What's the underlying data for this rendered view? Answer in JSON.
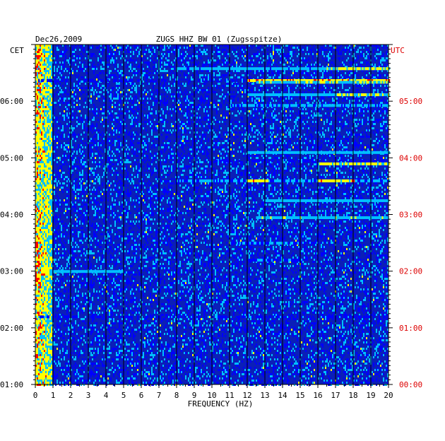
{
  "chart_data": {
    "type": "heatmap",
    "title_left": "Dec26,2009",
    "title": "ZUGS HHZ BW 01 (Zugsspitze)",
    "xlabel": "FREQUENCY (HZ)",
    "left_axis_label": "CET",
    "right_axis_label": "UTC",
    "xlim": [
      0,
      20
    ],
    "x_ticks": [
      "0",
      "1",
      "2",
      "3",
      "4",
      "5",
      "6",
      "7",
      "8",
      "9",
      "10",
      "11",
      "12",
      "13",
      "14",
      "15",
      "16",
      "17",
      "18",
      "19",
      "20"
    ],
    "y_ticks_cet": [
      "06:00",
      "05:00",
      "04:00",
      "03:00",
      "02:00",
      "01:00"
    ],
    "y_ticks_utc": [
      "05:00",
      "04:00",
      "03:00",
      "02:00",
      "01:00",
      "00:00"
    ],
    "y_tick_hours_from_top": [
      1,
      2,
      3,
      4,
      5,
      6
    ],
    "time_span_hours": 6,
    "grid": true,
    "colormap": [
      "#00008b",
      "#0000ff",
      "#00bfff",
      "#ffff00",
      "#ff0000"
    ],
    "background_color": "#0b1fb8",
    "accent_color": "#dd0000",
    "bands": [
      {
        "t": 0.42,
        "f0": 8.0,
        "f1": 20,
        "level": 0.55
      },
      {
        "t": 0.42,
        "f0": 16.5,
        "f1": 20,
        "level": 0.85
      },
      {
        "t": 0.63,
        "f0": 0,
        "f1": 20,
        "level": 0.35
      },
      {
        "t": 0.63,
        "f0": 12.0,
        "f1": 20,
        "level": 0.95
      },
      {
        "t": 0.66,
        "f0": 12.5,
        "f1": 20,
        "level": 0.7
      },
      {
        "t": 0.88,
        "f0": 12.0,
        "f1": 20,
        "level": 0.6
      },
      {
        "t": 0.88,
        "f0": 17.0,
        "f1": 20,
        "level": 0.8
      },
      {
        "t": 1.07,
        "f0": 11.0,
        "f1": 20,
        "level": 0.5
      },
      {
        "t": 1.4,
        "f0": 0,
        "f1": 20,
        "level": 0.25
      },
      {
        "t": 1.9,
        "f0": 12.0,
        "f1": 20,
        "level": 0.6
      },
      {
        "t": 2.05,
        "f0": 8.0,
        "f1": 20,
        "level": 0.35
      },
      {
        "t": 2.1,
        "f0": 16.0,
        "f1": 20,
        "level": 0.85
      },
      {
        "t": 2.4,
        "f0": 8.0,
        "f1": 20,
        "level": 0.5
      },
      {
        "t": 2.4,
        "f0": 12.0,
        "f1": 13.2,
        "level": 0.95
      },
      {
        "t": 2.4,
        "f0": 16.0,
        "f1": 18.0,
        "level": 0.9
      },
      {
        "t": 2.45,
        "f0": 0,
        "f1": 20,
        "level": 0.3
      },
      {
        "t": 2.75,
        "f0": 13.0,
        "f1": 20,
        "level": 0.6
      },
      {
        "t": 3.05,
        "f0": 12.5,
        "f1": 20,
        "level": 0.65
      },
      {
        "t": 3.5,
        "f0": 11.0,
        "f1": 15.0,
        "level": 0.45
      },
      {
        "t": 3.8,
        "f0": 12.0,
        "f1": 15.0,
        "level": 0.4
      },
      {
        "t": 3.95,
        "f0": 0,
        "f1": 20,
        "level": 0.3
      },
      {
        "t": 4.0,
        "f0": 1.0,
        "f1": 5.0,
        "level": 0.6
      },
      {
        "t": 4.8,
        "f0": 0,
        "f1": 20,
        "level": 0.35
      },
      {
        "t": 5.4,
        "f0": 0,
        "f1": 20,
        "level": 0.25
      }
    ]
  }
}
